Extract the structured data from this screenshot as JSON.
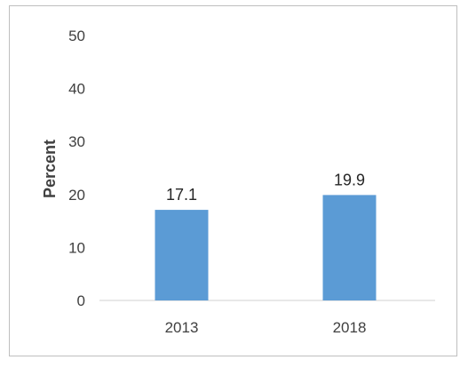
{
  "chart_data": {
    "type": "bar",
    "categories": [
      "2013",
      "2018"
    ],
    "values": [
      17.1,
      19.9
    ],
    "value_labels": [
      "17.1",
      "19.9"
    ],
    "title": "",
    "xlabel": "",
    "ylabel": "Percent",
    "ylim": [
      0,
      50
    ],
    "yticks": [
      "0",
      "10",
      "20",
      "30",
      "40",
      "50"
    ],
    "grid": false,
    "legend": "none",
    "bar_color": "#5b9bd5"
  }
}
